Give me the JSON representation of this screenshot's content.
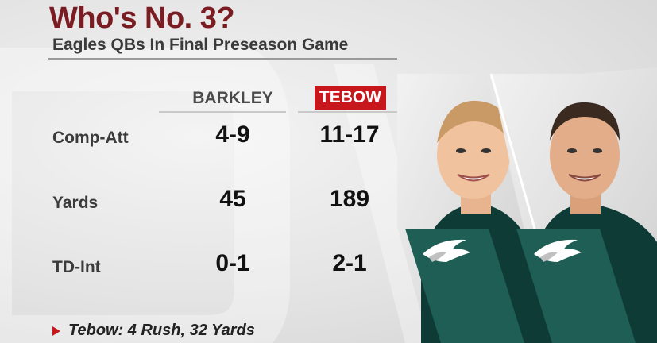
{
  "header": {
    "title": "Who's No. 3?",
    "subtitle": "Eagles QBs In Final Preseason Game"
  },
  "columns": {
    "player1": "BARKLEY",
    "player2": "TEBOW"
  },
  "rows": [
    {
      "label": "Comp-Att",
      "barkley": "4-9",
      "tebow": "11-17"
    },
    {
      "label": "Yards",
      "barkley": "45",
      "tebow": "189"
    },
    {
      "label": "TD-Int",
      "barkley": "0-1",
      "tebow": "2-1"
    }
  ],
  "footer": {
    "note": "Tebow: 4 Rush, 32 Yards"
  },
  "colors": {
    "title": "#7a1c22",
    "tebow_highlight": "#c8161d",
    "eagles_green": "#1f5e55",
    "jersey": "#0f3b36"
  }
}
